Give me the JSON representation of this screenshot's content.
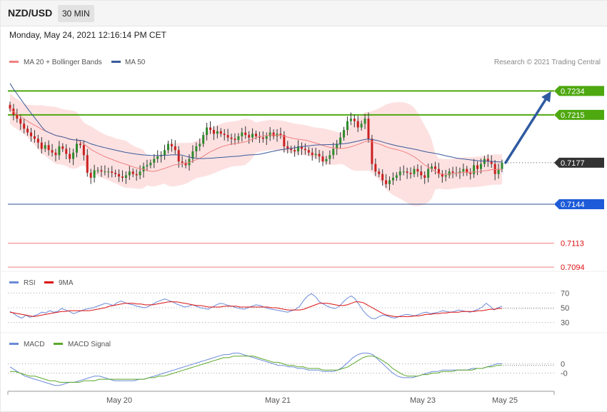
{
  "header": {
    "symbol": "NZD/USD",
    "timeframe": "30 MIN",
    "datetime": "Monday, May 24, 2021 12:16:14 PM CET"
  },
  "legend": {
    "ma20": "MA 20 + Bollinger Bands",
    "ma50": "MA 50",
    "rsi": "RSI",
    "rsi_ma": "9MA",
    "macd": "MACD",
    "macd_signal": "MACD Signal",
    "credit": "Research © 2021 Trading Central"
  },
  "colors": {
    "up_candle": "#2e8b2e",
    "down_candle": "#cc1f1f",
    "bollinger_fill": "#fcd7d7",
    "ma20": "#f08080",
    "ma50": "#3a5a9a",
    "resistance": "#4ea80f",
    "support": "#1e5bd8",
    "support_line": "#2b4f8f",
    "lower_level": "#f08080",
    "lower_level_text": "#dd1111",
    "current_price": "#333333",
    "arrow": "#2f5aa0",
    "rsi": "#6a8ad8",
    "rsi_ma": "#dd1111",
    "macd": "#6a8ad8",
    "macd_signal": "#5ba82a"
  },
  "chart_data": [
    {
      "type": "candlestick",
      "title": "NZD/USD 30 MIN",
      "x_ticks": [
        "May 20",
        "May 21",
        "May 23",
        "May 25"
      ],
      "ylim": [
        0.7085,
        0.7245
      ],
      "levels": [
        {
          "label": "0.7234",
          "value": 0.7234,
          "kind": "resistance"
        },
        {
          "label": "0.7215",
          "value": 0.7215,
          "kind": "resistance"
        },
        {
          "label": "0.7177",
          "value": 0.7177,
          "kind": "current"
        },
        {
          "label": "0.7144",
          "value": 0.7144,
          "kind": "support"
        },
        {
          "label": "0.7113",
          "value": 0.7113,
          "kind": "lower"
        },
        {
          "label": "0.7094",
          "value": 0.7094,
          "kind": "lower"
        }
      ],
      "arrow": {
        "from_index": 116,
        "from": 0.7177,
        "to": 0.7234
      },
      "close": [
        0.722,
        0.7215,
        0.7212,
        0.7208,
        0.7204,
        0.7201,
        0.7198,
        0.7196,
        0.7193,
        0.7188,
        0.7191,
        0.7187,
        0.7185,
        0.7183,
        0.719,
        0.7188,
        0.7184,
        0.718,
        0.7185,
        0.7192,
        0.7191,
        0.7183,
        0.7169,
        0.7165,
        0.7171,
        0.7171,
        0.717,
        0.717,
        0.717,
        0.7169,
        0.7168,
        0.7166,
        0.7165,
        0.7167,
        0.717,
        0.7168,
        0.7167,
        0.717,
        0.7174,
        0.7175,
        0.7177,
        0.718,
        0.7182,
        0.7183,
        0.7187,
        0.7192,
        0.719,
        0.7187,
        0.7178,
        0.7177,
        0.7175,
        0.718,
        0.7186,
        0.719,
        0.7192,
        0.7199,
        0.7205,
        0.7203,
        0.72,
        0.7202,
        0.72,
        0.7199,
        0.7197,
        0.7196,
        0.7195,
        0.7198,
        0.7201,
        0.7199,
        0.7197,
        0.72,
        0.7198,
        0.7197,
        0.7196,
        0.7198,
        0.7201,
        0.7198,
        0.72,
        0.7199,
        0.719,
        0.7188,
        0.7187,
        0.7186,
        0.719,
        0.7188,
        0.7187,
        0.7185,
        0.7183,
        0.7184,
        0.7182,
        0.7178,
        0.718,
        0.7183,
        0.7188,
        0.7192,
        0.7197,
        0.7203,
        0.721,
        0.7212,
        0.721,
        0.7205,
        0.7208,
        0.7212,
        0.7196,
        0.7176,
        0.717,
        0.7168,
        0.7163,
        0.716,
        0.7163,
        0.7165,
        0.7167,
        0.717,
        0.717,
        0.7169,
        0.7168,
        0.7172,
        0.717,
        0.7167,
        0.7165,
        0.7172,
        0.7174,
        0.7172,
        0.7168,
        0.7166,
        0.7167,
        0.717,
        0.7169,
        0.7169,
        0.717,
        0.7172,
        0.7169,
        0.7168,
        0.7175,
        0.7172,
        0.7176,
        0.718,
        0.7178,
        0.7176,
        0.7168,
        0.7172,
        0.7177
      ]
    },
    {
      "type": "line",
      "title": "RSI",
      "yticks": [
        "70",
        "50",
        "30"
      ],
      "ylim": [
        20,
        80
      ],
      "series": [
        {
          "name": "RSI",
          "values": [
            45,
            42,
            38,
            36,
            40,
            37,
            39,
            41,
            44,
            43,
            46,
            44,
            45,
            49,
            47,
            45,
            42,
            44,
            46,
            48,
            49,
            50,
            52,
            54,
            56,
            55,
            53,
            57,
            59,
            57,
            55,
            54,
            52,
            51,
            50,
            52,
            55,
            58,
            60,
            62,
            60,
            58,
            55,
            53,
            51,
            52,
            54,
            52,
            50,
            49,
            48,
            51,
            54,
            56,
            55,
            53,
            52,
            50,
            49,
            48,
            50,
            52,
            54,
            53,
            51,
            49,
            48,
            47,
            46,
            45,
            44,
            46,
            48,
            52,
            60,
            66,
            69,
            65,
            58,
            55,
            52,
            50,
            49,
            52,
            58,
            63,
            66,
            62,
            54,
            46,
            40,
            36,
            35,
            38,
            40,
            39,
            37,
            36,
            38,
            40,
            41,
            40,
            39,
            41,
            43,
            44,
            42,
            43,
            44,
            46,
            45,
            44,
            45,
            47,
            46,
            45,
            44,
            46,
            48,
            51,
            56,
            52,
            47,
            50,
            52
          ]
        },
        {
          "name": "9MA",
          "values": [
            44,
            43,
            42,
            41,
            40,
            39,
            38,
            39,
            40,
            41,
            42,
            43,
            44,
            45,
            45,
            46,
            46,
            46,
            46,
            46,
            46,
            47,
            48,
            49,
            50,
            52,
            53,
            54,
            55,
            56,
            56,
            56,
            55,
            55,
            54,
            54,
            54,
            55,
            56,
            57,
            58,
            58,
            58,
            57,
            56,
            55,
            54,
            53,
            53,
            52,
            51,
            51,
            51,
            51,
            52,
            52,
            52,
            52,
            51,
            51,
            51,
            51,
            51,
            51,
            51,
            51,
            50,
            50,
            49,
            48,
            47,
            47,
            47,
            47,
            48,
            50,
            52,
            54,
            56,
            56,
            56,
            55,
            54,
            53,
            53,
            54,
            56,
            58,
            58,
            57,
            54,
            51,
            48,
            45,
            42,
            40,
            39,
            38,
            38,
            38,
            38,
            38,
            39,
            39,
            40,
            41,
            41,
            42,
            42,
            43,
            43,
            44,
            44,
            44,
            45,
            45,
            45,
            45,
            46,
            46,
            47,
            48,
            48,
            49,
            49
          ]
        }
      ]
    },
    {
      "type": "line",
      "title": "MACD",
      "yticks": [
        "0",
        "-0"
      ],
      "ylim": [
        -0.0016,
        0.001
      ],
      "series": [
        {
          "name": "MACD",
          "values": [
            -0.0002,
            -0.0004,
            -0.0006,
            -0.0008,
            -0.0009,
            -0.001,
            -0.0011,
            -0.0012,
            -0.0013,
            -0.0014,
            -0.0014,
            -0.0013,
            -0.0012,
            -0.0012,
            -0.0011,
            -0.001,
            -0.0009,
            -0.0008,
            -0.0008,
            -0.0009,
            -0.001,
            -0.0011,
            -0.0011,
            -0.0011,
            -0.0011,
            -0.0011,
            -0.001,
            -0.001,
            -0.0009,
            -0.0008,
            -0.0007,
            -0.0006,
            -0.0005,
            -0.0004,
            -0.0003,
            -0.0002,
            -0.0001,
            0.0,
            0.0001,
            0.0002,
            0.0003,
            0.0004,
            0.0005,
            0.0006,
            0.0006,
            0.0007,
            0.0007,
            0.0006,
            0.0005,
            0.0004,
            0.0003,
            0.0002,
            0.0001,
            0.0,
            -0.0001,
            -0.0001,
            -0.0002,
            -0.0002,
            -0.0003,
            -0.0003,
            -0.0004,
            -0.0004,
            -0.0004,
            -0.0005,
            -0.0005,
            -0.0005,
            -0.0004,
            -0.0002,
            0.0001,
            0.0004,
            0.0006,
            0.0007,
            0.0007,
            0.0006,
            0.0003,
            0.0,
            -0.0003,
            -0.0006,
            -0.0008,
            -0.0009,
            -0.0009,
            -0.0009,
            -0.0008,
            -0.0007,
            -0.0006,
            -0.0005,
            -0.0005,
            -0.0004,
            -0.0004,
            -0.0004,
            -0.0004,
            -0.0004,
            -0.0004,
            -0.0003,
            -0.0003,
            -0.0003,
            -0.0002,
            -0.0001,
            0.0,
            0.0
          ]
        },
        {
          "name": "MACD Signal",
          "values": [
            -0.0005,
            -0.0005,
            -0.0006,
            -0.0007,
            -0.0008,
            -0.0008,
            -0.0009,
            -0.001,
            -0.0011,
            -0.0011,
            -0.0012,
            -0.0012,
            -0.0012,
            -0.0012,
            -0.0012,
            -0.0011,
            -0.0011,
            -0.0011,
            -0.001,
            -0.001,
            -0.001,
            -0.001,
            -0.001,
            -0.001,
            -0.001,
            -0.001,
            -0.001,
            -0.001,
            -0.0009,
            -0.0009,
            -0.0008,
            -0.0008,
            -0.0007,
            -0.0006,
            -0.0005,
            -0.0004,
            -0.0003,
            -0.0002,
            -0.0001,
            0.0,
            0.0001,
            0.0002,
            0.0003,
            0.0004,
            0.0004,
            0.0005,
            0.0005,
            0.0005,
            0.0005,
            0.0005,
            0.0004,
            0.0003,
            0.0002,
            0.0001,
            0.0001,
            0.0,
            -0.0001,
            -0.0001,
            -0.0002,
            -0.0002,
            -0.0003,
            -0.0003,
            -0.0003,
            -0.0004,
            -0.0004,
            -0.0004,
            -0.0004,
            -0.0003,
            -0.0002,
            0.0,
            0.0002,
            0.0004,
            0.0005,
            0.0005,
            0.0004,
            0.0002,
            0.0,
            -0.0003,
            -0.0005,
            -0.0007,
            -0.0008,
            -0.0008,
            -0.0008,
            -0.0007,
            -0.0007,
            -0.0006,
            -0.0006,
            -0.0005,
            -0.0005,
            -0.0005,
            -0.0004,
            -0.0004,
            -0.0004,
            -0.0004,
            -0.0003,
            -0.0003,
            -0.0002,
            -0.0002,
            -0.0001,
            -0.0001
          ]
        }
      ]
    }
  ]
}
